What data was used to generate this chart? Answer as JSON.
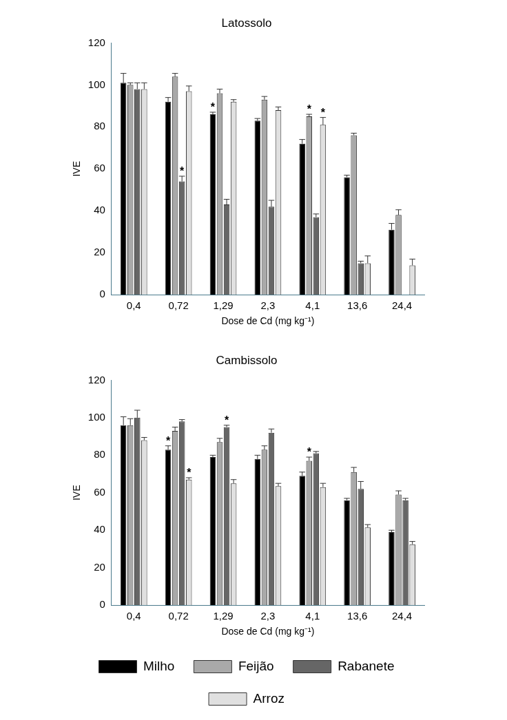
{
  "chart_data": [
    {
      "type": "bar",
      "title": "Latossolo",
      "xlabel": "Dose de Cd (mg kg⁻¹)",
      "ylabel": "IVE",
      "categories": [
        "0,4",
        "0,72",
        "1,29",
        "2,3",
        "4,1",
        "13,6",
        "24,4"
      ],
      "series": [
        {
          "color": "#000000",
          "values": [
            101,
            92,
            86,
            83,
            72,
            56,
            31
          ],
          "errors": [
            4.5,
            2,
            1,
            1,
            2,
            1,
            3
          ]
        },
        {
          "color": "#a9a9a9",
          "values": [
            100,
            104,
            96,
            93,
            85,
            76,
            38
          ],
          "errors": [
            1,
            1.5,
            2,
            1.5,
            1,
            1,
            2.5
          ]
        },
        {
          "color": "#666666",
          "values": [
            98,
            54,
            43,
            42,
            37,
            15,
            null
          ],
          "errors": [
            3,
            2.5,
            2.5,
            3,
            1.5,
            1,
            null
          ]
        },
        {
          "color": "#e0e0e0",
          "values": [
            98,
            97,
            92,
            88,
            81,
            15,
            14
          ],
          "errors": [
            3,
            2.5,
            1,
            1.5,
            3.5,
            3.5,
            3
          ]
        }
      ],
      "ylim": [
        0,
        120
      ],
      "yticks": [
        0,
        20,
        40,
        60,
        80,
        100,
        120
      ],
      "grid": false,
      "legend": false,
      "annotations": [
        {
          "text": "*",
          "x": "0,72",
          "y": 56.5
        },
        {
          "text": "*",
          "x": "1,29",
          "y": 87
        },
        {
          "text": "*",
          "x": "4,1",
          "y": 86
        },
        {
          "text": "*",
          "x": "4,1",
          "y": 84.5
        }
      ]
    },
    {
      "type": "bar",
      "title": "Cambissolo",
      "xlabel": "Dose de Cd (mg kg⁻¹)",
      "ylabel": "IVE",
      "categories": [
        "0,4",
        "0,72",
        "1,29",
        "2,3",
        "4,1",
        "13,6",
        "24,4"
      ],
      "series": [
        {
          "name": "Milho",
          "color": "#000000",
          "values": [
            96,
            83,
            79,
            78,
            69,
            56,
            39
          ],
          "errors": [
            4.5,
            2,
            1,
            2,
            2,
            1,
            1
          ]
        },
        {
          "name": "Feijão",
          "color": "#a9a9a9",
          "values": [
            96,
            93,
            87,
            83,
            77,
            71,
            59
          ],
          "errors": [
            3.5,
            2,
            2,
            2,
            2,
            2.5,
            2
          ]
        },
        {
          "name": "Rabanete",
          "color": "#666666",
          "values": [
            100,
            98,
            95,
            92,
            81,
            62,
            56
          ],
          "errors": [
            4,
            1,
            1,
            2,
            1,
            4,
            1
          ]
        },
        {
          "name": "Arroz",
          "color": "#e0e0e0",
          "values": [
            88,
            67,
            65,
            63.5,
            63,
            41.5,
            32.5
          ],
          "errors": [
            1.5,
            1,
            2,
            1.5,
            2,
            1.5,
            1.5
          ]
        }
      ],
      "ylim": [
        0,
        120
      ],
      "yticks": [
        0,
        20,
        40,
        60,
        80,
        100,
        120
      ],
      "grid": false,
      "legend": "bottom",
      "annotations": [
        {
          "text": "*",
          "x": "0,72",
          "y": 85
        },
        {
          "text": "*",
          "x": "0,72",
          "y": 68
        },
        {
          "text": "*",
          "x": "1,29",
          "y": 96
        },
        {
          "text": "*",
          "x": "4,1",
          "y": 79
        }
      ]
    }
  ]
}
